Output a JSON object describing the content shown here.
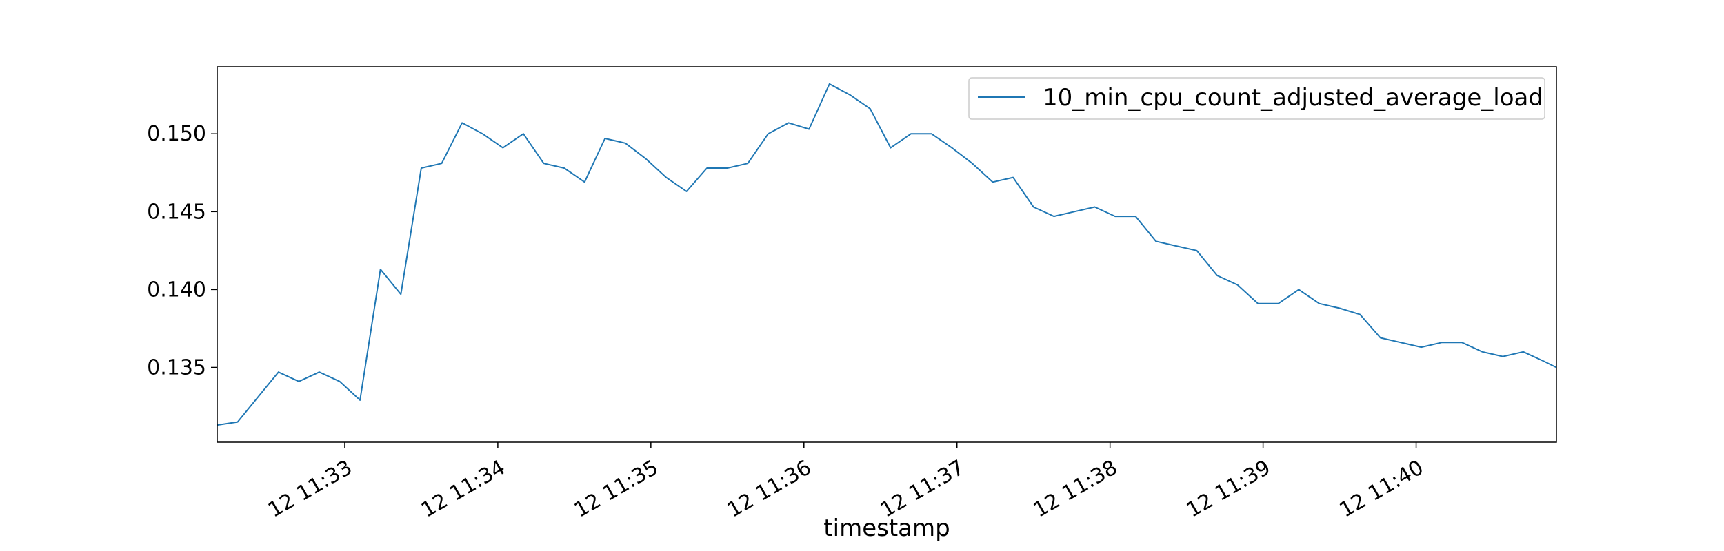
{
  "chart_data": {
    "type": "line",
    "title": "",
    "xlabel": "timestamp",
    "ylabel": "",
    "xlim": [
      "11:32:10",
      "11:40:55"
    ],
    "ylim": [
      0.1302,
      0.1543
    ],
    "x_ticks": [
      {
        "time": "11:33:00",
        "label": "12 11:33"
      },
      {
        "time": "11:34:00",
        "label": "12 11:34"
      },
      {
        "time": "11:35:00",
        "label": "12 11:35"
      },
      {
        "time": "11:36:00",
        "label": "12 11:36"
      },
      {
        "time": "11:37:00",
        "label": "12 11:37"
      },
      {
        "time": "11:38:00",
        "label": "12 11:38"
      },
      {
        "time": "11:39:00",
        "label": "12 11:39"
      },
      {
        "time": "11:40:00",
        "label": "12 11:40"
      }
    ],
    "y_ticks": [
      {
        "value": 0.135,
        "label": "0.135"
      },
      {
        "value": 0.14,
        "label": "0.140"
      },
      {
        "value": 0.145,
        "label": "0.145"
      },
      {
        "value": 0.15,
        "label": "0.150"
      }
    ],
    "grid": false,
    "legend_position": "top-right",
    "series": [
      {
        "name": "10_min_cpu_count_adjusted_average_load",
        "color": "#1f77b4",
        "x": [
          "11:32:10",
          "11:32:18",
          "11:32:26",
          "11:32:34",
          "11:32:42",
          "11:32:50",
          "11:32:58",
          "11:33:06",
          "11:33:14",
          "11:33:22",
          "11:33:30",
          "11:33:38",
          "11:33:46",
          "11:33:54",
          "11:34:02",
          "11:34:10",
          "11:34:18",
          "11:34:26",
          "11:34:34",
          "11:34:42",
          "11:34:50",
          "11:34:58",
          "11:35:06",
          "11:35:14",
          "11:35:22",
          "11:35:30",
          "11:35:38",
          "11:35:46",
          "11:35:54",
          "11:36:02",
          "11:36:10",
          "11:36:18",
          "11:36:26",
          "11:36:34",
          "11:36:42",
          "11:36:50",
          "11:36:58",
          "11:37:06",
          "11:37:14",
          "11:37:22",
          "11:37:30",
          "11:37:38",
          "11:37:46",
          "11:37:54",
          "11:38:02",
          "11:38:10",
          "11:38:18",
          "11:38:26",
          "11:38:34",
          "11:38:42",
          "11:38:50",
          "11:38:58",
          "11:39:06",
          "11:39:14",
          "11:39:22",
          "11:39:30",
          "11:39:38",
          "11:39:46",
          "11:39:54",
          "11:40:02",
          "11:40:10",
          "11:40:18",
          "11:40:26",
          "11:40:34",
          "11:40:42",
          "11:40:50",
          "11:40:55"
        ],
        "values": [
          0.1313,
          0.1315,
          0.1331,
          0.1347,
          0.1341,
          0.1347,
          0.1341,
          0.1329,
          0.1413,
          0.1397,
          0.1478,
          0.1481,
          0.1507,
          0.15,
          0.1491,
          0.15,
          0.1481,
          0.1478,
          0.1469,
          0.1497,
          0.1494,
          0.1484,
          0.1472,
          0.1463,
          0.1478,
          0.1478,
          0.1481,
          0.15,
          0.1507,
          0.1503,
          0.1532,
          0.1525,
          0.1516,
          0.1491,
          0.15,
          0.15,
          0.1491,
          0.1481,
          0.1469,
          0.1472,
          0.1453,
          0.1447,
          0.145,
          0.1453,
          0.1447,
          0.1447,
          0.1431,
          0.1428,
          0.1425,
          0.1409,
          0.1403,
          0.1391,
          0.1391,
          0.14,
          0.1391,
          0.1388,
          0.1384,
          0.1369,
          0.1366,
          0.1363,
          0.1366,
          0.1366,
          0.136,
          0.1357,
          0.136,
          0.1354,
          0.135
        ]
      }
    ]
  }
}
